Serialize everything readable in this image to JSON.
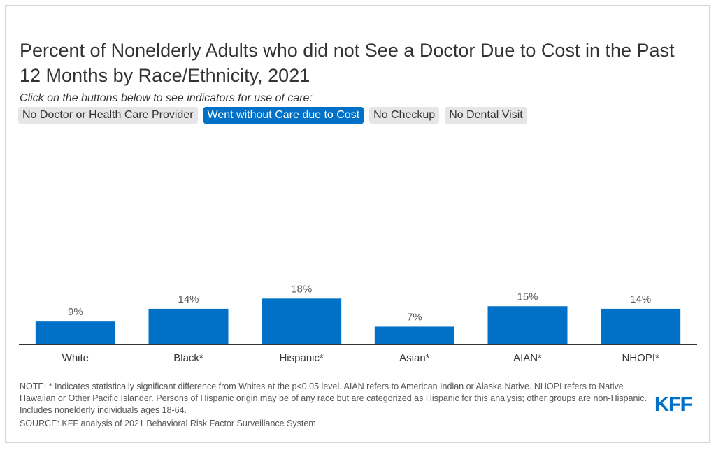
{
  "title": "Percent of Nonelderly Adults who did not See a Doctor Due to Cost in the Past 12 Months by Race/Ethnicity, 2021",
  "instruction": "Click on the buttons below to see indicators for use of care:",
  "buttons": [
    {
      "label": "No Doctor or Health Care Provider",
      "active": false
    },
    {
      "label": "Went without Care due to Cost",
      "active": true
    },
    {
      "label": "No Checkup",
      "active": false
    },
    {
      "label": "No Dental Visit",
      "active": false
    }
  ],
  "colors": {
    "bar": "#0071c7",
    "accent": "#0071c7",
    "button_inactive": "#e6e6e6"
  },
  "chart_data": {
    "type": "bar",
    "title": "Percent of Nonelderly Adults who did not See a Doctor Due to Cost in the Past 12 Months by Race/Ethnicity, 2021",
    "xlabel": "",
    "ylabel": "",
    "categories": [
      "White",
      "Black*",
      "Hispanic*",
      "Asian*",
      "AIAN*",
      "NHOPI*"
    ],
    "values": [
      9,
      14,
      18,
      7,
      15,
      14
    ],
    "data_labels": [
      "9%",
      "14%",
      "18%",
      "7%",
      "15%",
      "14%"
    ],
    "ylim": [
      0,
      100
    ],
    "grid": false,
    "legend": "none"
  },
  "note": "NOTE: * Indicates statistically significant difference from Whites at the p<0.05 level. AIAN refers to American Indian or Alaska Native. NHOPI refers to Native Hawaiian or Other Pacific Islander. Persons of Hispanic origin may be of any race but are categorized as Hispanic for this analysis; other groups are non-Hispanic. Includes nonelderly individuals ages 18-64.",
  "source": "SOURCE: KFF analysis of 2021 Behavioral Risk Factor Surveillance System",
  "logo_text": "KFF"
}
